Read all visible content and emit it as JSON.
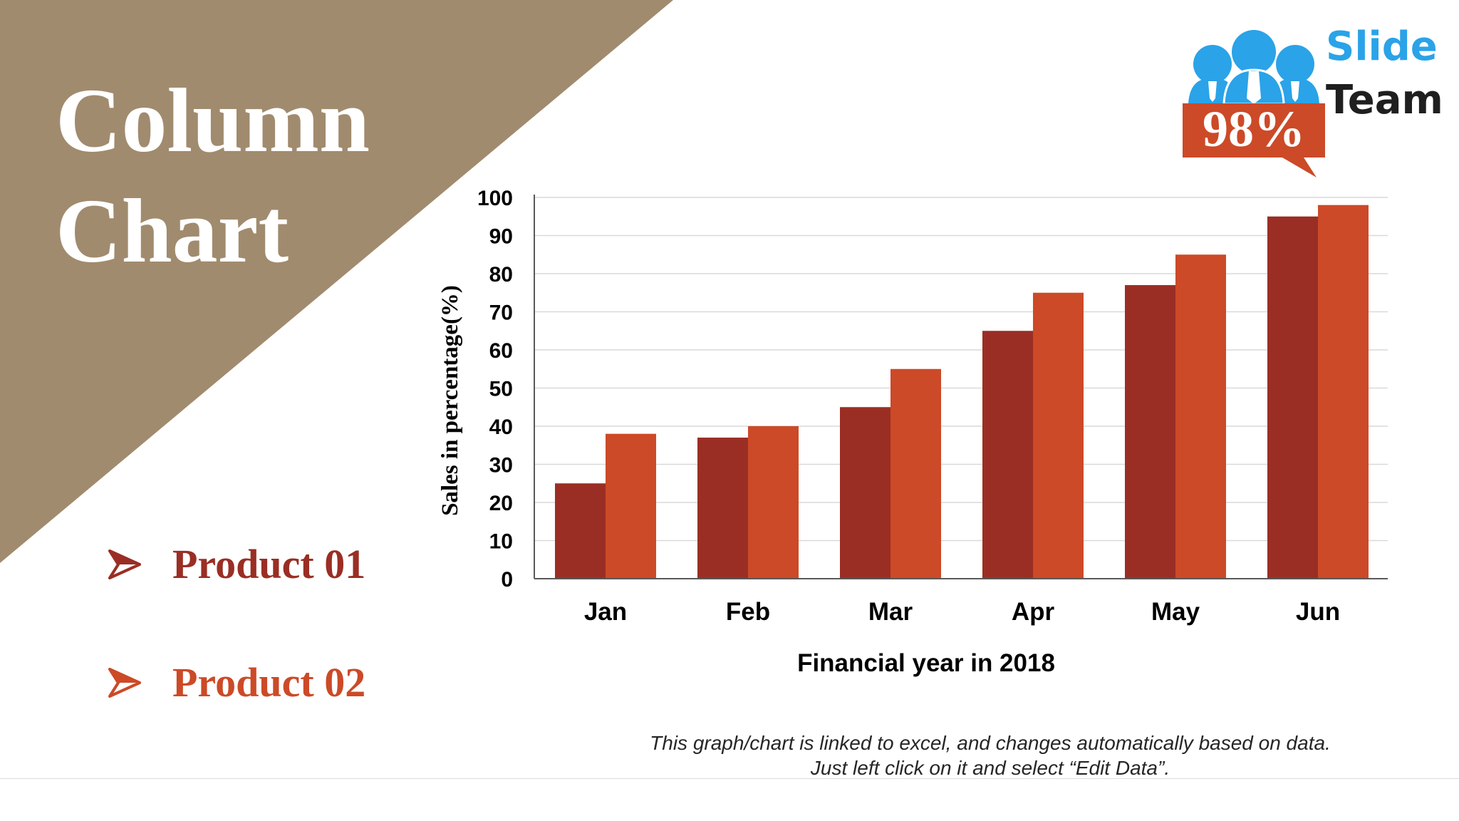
{
  "slide": {
    "title_line1": "Column",
    "title_line2": "Chart",
    "note_line1": "This graph/chart is linked to excel, and changes automatically based on data.",
    "note_line2": "Just left click on it and select “Edit Data”.",
    "colors": {
      "triangle": "#a18b6e",
      "product01": "#9a2e24",
      "product02": "#cc4a27",
      "logo_blue": "#2aa3e8",
      "badge": "#cc4a27"
    }
  },
  "legend": [
    {
      "label": "Product 01",
      "icon": "arrow-right-icon",
      "color": "#9a2e24"
    },
    {
      "label": "Product 02",
      "icon": "arrow-right-icon",
      "color": "#cc4a27"
    }
  ],
  "logo": {
    "line1": "Slide",
    "line2": "Team",
    "badge": "98%",
    "icon": "people-group-icon"
  },
  "chart_data": {
    "type": "bar",
    "categories": [
      "Jan",
      "Feb",
      "Mar",
      "Apr",
      "May",
      "Jun"
    ],
    "series": [
      {
        "name": "Product 01",
        "values": [
          25,
          37,
          45,
          65,
          77,
          95
        ],
        "color": "#9a2e24"
      },
      {
        "name": "Product 02",
        "values": [
          38,
          40,
          55,
          75,
          85,
          98
        ],
        "color": "#cc4a27"
      }
    ],
    "xlabel": "Financial year in 2018",
    "ylabel": "Sales in percentage(%)",
    "ylim": [
      0,
      100
    ],
    "yticks": [
      0,
      10,
      20,
      30,
      40,
      50,
      60,
      70,
      80,
      90,
      100
    ],
    "grid": true,
    "legend_position": "left"
  }
}
